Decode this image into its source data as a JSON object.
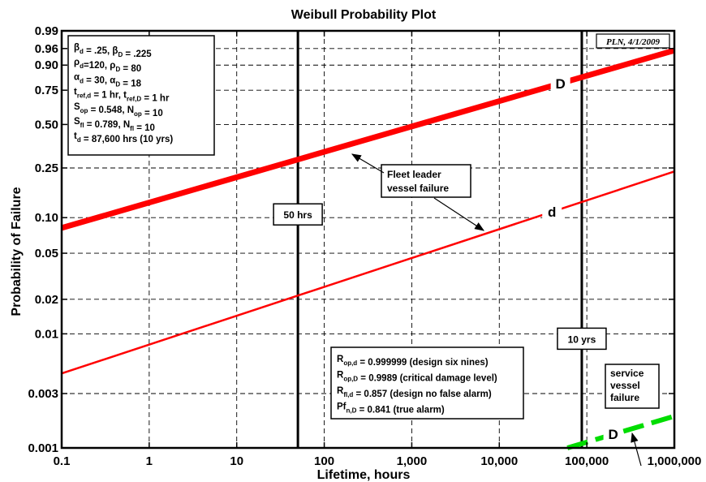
{
  "chart_data": {
    "type": "line",
    "title": "Weibull Probability Plot",
    "xlabel": "Lifetime, hours",
    "ylabel": "Probability of Failure",
    "x_scale": "log",
    "y_scale": "weibull",
    "xlim": [
      0.1,
      1000000
    ],
    "ylim": [
      0.001,
      0.99
    ],
    "grid": true,
    "x_ticks": [
      0.1,
      1,
      10,
      100,
      1000,
      10000,
      100000,
      1000000
    ],
    "x_tick_labels": [
      "0.1",
      "1",
      "10",
      "100",
      "1,000",
      "10,000",
      "100,000",
      "1,000,000"
    ],
    "y_ticks": [
      0.001,
      0.003,
      0.01,
      0.02,
      0.05,
      0.1,
      0.25,
      0.5,
      0.75,
      0.9,
      0.96,
      0.99
    ],
    "y_tick_labels": [
      "0.001",
      "0.003",
      "0.01",
      "0.02",
      "0.05",
      "0.10",
      "0.25",
      "0.50",
      "0.75",
      "0.90",
      "0.96",
      "0.99"
    ],
    "series": [
      {
        "name": "D",
        "color": "#ff0000",
        "style": "thick",
        "points": [
          [
            0.1,
            0.082
          ],
          [
            1000000,
            0.955
          ]
        ]
      },
      {
        "name": "d",
        "color": "#ff0000",
        "style": "thin",
        "points": [
          [
            0.1,
            0.0045
          ],
          [
            1000000,
            0.235
          ]
        ]
      },
      {
        "name": "D",
        "color": "#00dd00",
        "style": "thick-dashed",
        "points": [
          [
            60000,
            0.001
          ],
          [
            1000000,
            0.0019
          ]
        ]
      }
    ],
    "reference_lines": [
      {
        "x": 50,
        "label": "50 hrs"
      },
      {
        "x": 87600,
        "label": "10 yrs"
      }
    ],
    "annotations": [
      {
        "text": "Fleet leader vessel failure",
        "lines": [
          "Fleet leader",
          "vessel failure"
        ]
      },
      {
        "text": "service vessel failure",
        "lines": [
          "service",
          "vessel",
          "failure"
        ]
      }
    ],
    "parameter_box": [
      "β_d = .25, β_D = .225",
      "ρ_d=120, ρ_D = 80",
      "α_d = 30, α_D = 18",
      "t_ref,d = 1 hr, t_ref,D = 1 hr",
      "S_op = 0.548, N_op = 10",
      "S_fl = 0.789, N_fl = 10",
      "t_d = 87,600 hrs (10 yrs)"
    ],
    "reliability_box": [
      "R_op,d = 0.999999 (design six nines)",
      "R_op,D = 0.9989 (critical damage level)",
      "R_fl,d = 0.857 (design no false alarm)",
      "Pf_n,D = 0.841 (true alarm)"
    ],
    "stamp": "PLN, 4/1/2009"
  }
}
